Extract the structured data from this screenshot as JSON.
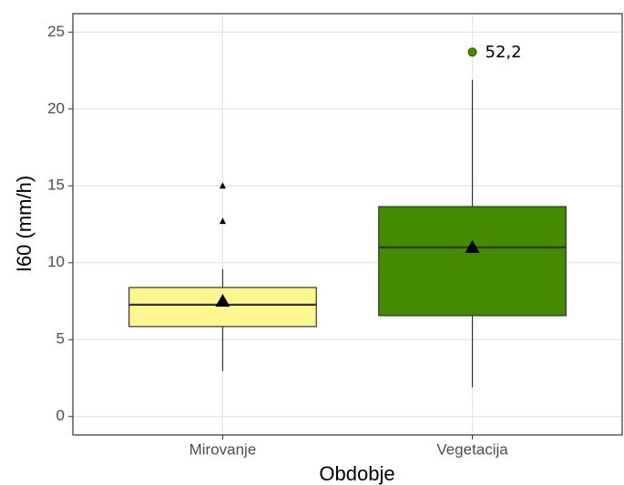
{
  "chart_data": {
    "type": "box",
    "x_label": "Obdobje",
    "y_label": "I60 (mm/h)",
    "categories": [
      "Mirovanje",
      "Vegetacija"
    ],
    "series": [
      {
        "name": "Mirovanje",
        "color": "#fff68f",
        "whisker_low": 2.95,
        "q1": 5.85,
        "median": 7.27,
        "q3": 8.39,
        "whisker_high": 9.57,
        "mean": 7.5,
        "outliers": [
          15.0,
          12.7
        ]
      },
      {
        "name": "Vegetacija",
        "color": "#458b00",
        "whisker_low": 1.9,
        "q1": 6.56,
        "median": 11.0,
        "q3": 13.65,
        "whisker_high": 21.9,
        "mean": 11.0,
        "outliers": [
          23.7
        ]
      }
    ],
    "annotation": {
      "text": "52,2",
      "series": 1,
      "outlier": 0,
      "color": "#458b00"
    },
    "ylim": [
      -1.2,
      26.2
    ],
    "yticks": [
      0,
      5,
      10,
      15,
      20,
      25
    ],
    "grid": true
  }
}
